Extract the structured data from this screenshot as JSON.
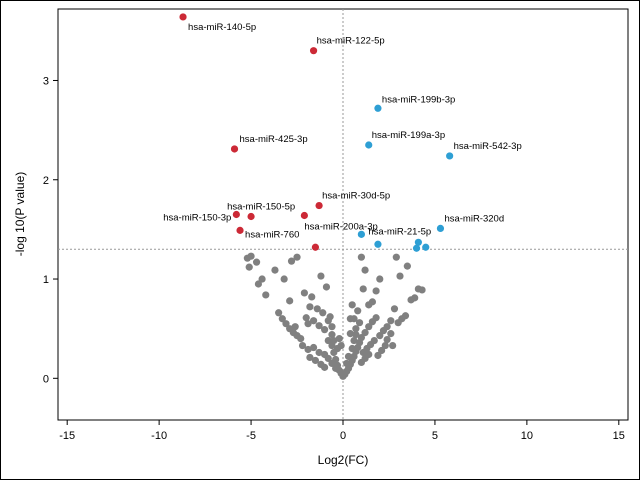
{
  "chart_data": {
    "type": "scatter",
    "title": "",
    "xlabel": "Log2(FC)",
    "ylabel": "-log 10(P value)",
    "xlim": [
      -15.5,
      15.5
    ],
    "ylim": [
      -0.42,
      3.72
    ],
    "xticks": [
      -15,
      -10,
      -5,
      0,
      5,
      10,
      15
    ],
    "yticks": [
      0,
      1,
      2,
      3
    ],
    "grid": false,
    "reference_lines": {
      "x": 0,
      "y": 1.3
    },
    "colors": {
      "down": "#cc2936",
      "up": "#2e9fd4",
      "ns": "#808080"
    },
    "labeled_points": [
      {
        "label": "hsa-miR-140-5p",
        "x": -8.7,
        "y": 3.64,
        "group": "down"
      },
      {
        "label": "hsa-miR-122-5p",
        "x": -1.6,
        "y": 3.3,
        "group": "down"
      },
      {
        "label": "hsa-miR-425-3p",
        "x": -5.9,
        "y": 2.31,
        "group": "down"
      },
      {
        "label": "hsa-miR-30d-5p",
        "x": -1.3,
        "y": 1.74,
        "group": "down"
      },
      {
        "label": "hsa-miR-150-5p",
        "x": -5.0,
        "y": 1.63,
        "group": "down"
      },
      {
        "label": "hsa-miR-150-3p",
        "x": -5.8,
        "y": 1.65,
        "group": "down"
      },
      {
        "label": "hsa-miR-200a-3p",
        "x": -2.1,
        "y": 1.64,
        "group": "down"
      },
      {
        "label": "hsa-miR-760",
        "x": -5.6,
        "y": 1.49,
        "group": "down"
      },
      {
        "label": "",
        "x": -1.5,
        "y": 1.32,
        "group": "down"
      },
      {
        "label": "hsa-miR-199b-3p",
        "x": 1.9,
        "y": 2.72,
        "group": "up"
      },
      {
        "label": "hsa-miR-199a-3p",
        "x": 1.4,
        "y": 2.35,
        "group": "up"
      },
      {
        "label": "hsa-miR-542-3p",
        "x": 5.8,
        "y": 2.24,
        "group": "up"
      },
      {
        "label": "hsa-miR-320d",
        "x": 5.3,
        "y": 1.51,
        "group": "up"
      },
      {
        "label": "hsa-miR-21-5p",
        "x": 1.0,
        "y": 1.45,
        "group": "up"
      },
      {
        "label": "",
        "x": 1.9,
        "y": 1.35,
        "group": "up"
      },
      {
        "label": "",
        "x": 4.1,
        "y": 1.37,
        "group": "up"
      },
      {
        "label": "",
        "x": 4.0,
        "y": 1.31,
        "group": "up"
      },
      {
        "label": "",
        "x": 4.5,
        "y": 1.32,
        "group": "up"
      }
    ],
    "ns_points": [
      [
        -5.2,
        1.21
      ],
      [
        -5.0,
        1.23
      ],
      [
        -4.7,
        1.17
      ],
      [
        -5.1,
        1.12
      ],
      [
        -4.4,
        1.0
      ],
      [
        -4.6,
        0.95
      ],
      [
        -4.2,
        0.84
      ],
      [
        -3.7,
        1.09
      ],
      [
        -3.2,
        1.0
      ],
      [
        -2.8,
        1.18
      ],
      [
        -2.5,
        1.22
      ],
      [
        -2.9,
        0.78
      ],
      [
        -2.1,
        0.86
      ],
      [
        -1.7,
        0.82
      ],
      [
        -1.2,
        1.03
      ],
      [
        -0.9,
        0.92
      ],
      [
        -1.8,
        0.72
      ],
      [
        -1.4,
        0.7
      ],
      [
        -1.1,
        0.66
      ],
      [
        -0.7,
        0.62
      ],
      [
        -3.5,
        0.66
      ],
      [
        -3.3,
        0.6
      ],
      [
        -3.1,
        0.55
      ],
      [
        -2.9,
        0.5
      ],
      [
        -2.7,
        0.46
      ],
      [
        -2.5,
        0.43
      ],
      [
        -2.3,
        0.4
      ],
      [
        -2.6,
        0.52
      ],
      [
        -2.0,
        0.61
      ],
      [
        -1.9,
        0.55
      ],
      [
        -1.6,
        0.58
      ],
      [
        -1.3,
        0.53
      ],
      [
        -1.0,
        0.49
      ],
      [
        -0.8,
        0.58
      ],
      [
        -0.6,
        0.52
      ],
      [
        -2.2,
        0.33
      ],
      [
        -1.9,
        0.29
      ],
      [
        -1.6,
        0.31
      ],
      [
        -1.3,
        0.26
      ],
      [
        -1.0,
        0.24
      ],
      [
        -0.8,
        0.38
      ],
      [
        -0.6,
        0.33
      ],
      [
        -0.5,
        0.26
      ],
      [
        -0.4,
        0.19
      ],
      [
        -0.3,
        0.13
      ],
      [
        -0.2,
        0.08
      ],
      [
        -0.1,
        0.05
      ],
      [
        -0.6,
        0.44
      ],
      [
        -0.5,
        0.38
      ],
      [
        -0.3,
        0.3
      ],
      [
        -0.8,
        0.2
      ],
      [
        -0.6,
        0.15
      ],
      [
        -0.4,
        0.1
      ],
      [
        -1.8,
        0.21
      ],
      [
        -1.5,
        0.18
      ],
      [
        -1.2,
        0.14
      ],
      [
        -1.0,
        0.11
      ],
      [
        0.0,
        0.02
      ],
      [
        0.1,
        0.04
      ],
      [
        0.2,
        0.07
      ],
      [
        0.3,
        0.1
      ],
      [
        0.4,
        0.14
      ],
      [
        0.5,
        0.18
      ],
      [
        0.6,
        0.22
      ],
      [
        0.7,
        0.27
      ],
      [
        0.8,
        0.31
      ],
      [
        0.9,
        0.36
      ],
      [
        1.0,
        0.41
      ],
      [
        1.2,
        0.46
      ],
      [
        1.4,
        0.52
      ],
      [
        1.6,
        0.57
      ],
      [
        1.8,
        0.61
      ],
      [
        0.5,
        0.3
      ],
      [
        0.6,
        0.38
      ],
      [
        0.4,
        0.45
      ],
      [
        0.7,
        0.5
      ],
      [
        0.9,
        0.56
      ],
      [
        0.6,
        0.6
      ],
      [
        0.8,
        0.68
      ],
      [
        0.5,
        0.74
      ],
      [
        1.1,
        0.26
      ],
      [
        1.3,
        0.3
      ],
      [
        1.5,
        0.34
      ],
      [
        1.7,
        0.38
      ],
      [
        2.0,
        0.43
      ],
      [
        2.2,
        0.48
      ],
      [
        2.4,
        0.52
      ],
      [
        2.6,
        0.58
      ],
      [
        1.9,
        0.23
      ],
      [
        2.1,
        0.28
      ],
      [
        2.3,
        0.33
      ],
      [
        1.0,
        0.16
      ],
      [
        1.2,
        0.2
      ],
      [
        1.4,
        0.24
      ],
      [
        0.3,
        0.22
      ],
      [
        0.2,
        0.15
      ],
      [
        1.1,
        0.9
      ],
      [
        1.0,
        1.22
      ],
      [
        1.2,
        1.09
      ],
      [
        1.4,
        0.74
      ],
      [
        1.6,
        0.77
      ],
      [
        1.8,
        0.88
      ],
      [
        2.0,
        1.0
      ],
      [
        2.9,
        1.22
      ],
      [
        3.1,
        1.03
      ],
      [
        3.5,
        1.13
      ],
      [
        3.7,
        0.79
      ],
      [
        3.9,
        0.81
      ],
      [
        4.1,
        0.9
      ],
      [
        4.3,
        0.89
      ],
      [
        3.4,
        0.63
      ],
      [
        3.2,
        0.6
      ],
      [
        2.8,
        0.7
      ],
      [
        2.6,
        0.45
      ],
      [
        2.4,
        0.39
      ],
      [
        2.7,
        0.33
      ],
      [
        3.0,
        0.56
      ],
      [
        0.4,
        0.6
      ],
      [
        0.7,
        0.44
      ],
      [
        -0.1,
        0.33
      ],
      [
        -0.2,
        0.4
      ]
    ]
  }
}
